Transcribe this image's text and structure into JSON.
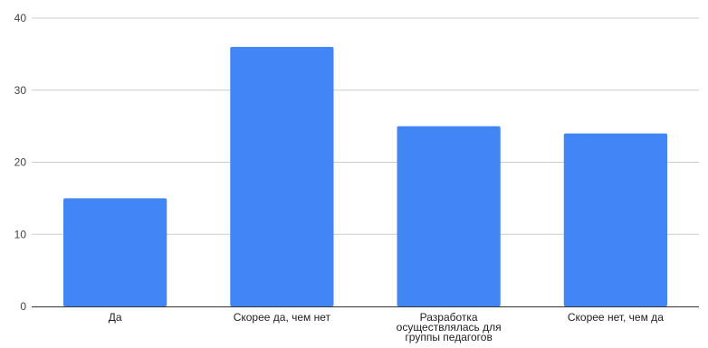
{
  "chart_data": {
    "type": "bar",
    "categories": [
      [
        "Да"
      ],
      [
        "Скорее да, чем нет"
      ],
      [
        "Разработка",
        "осуществлялась для",
        "группы педагогов"
      ],
      [
        "Скорее нет, чем да"
      ]
    ],
    "values": [
      15,
      36,
      25,
      24
    ],
    "ylim": [
      0,
      40
    ],
    "yticks": [
      0,
      10,
      20,
      30,
      40
    ],
    "grid": true,
    "legend": "none",
    "bar_color": "#4285f4",
    "title": "",
    "xlabel": "",
    "ylabel": ""
  }
}
